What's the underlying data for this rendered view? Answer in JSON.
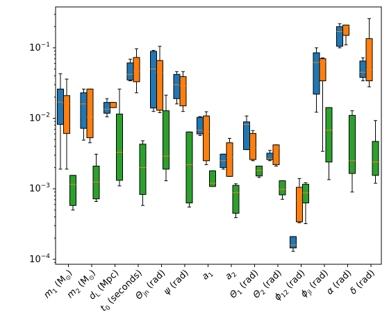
{
  "chart_data": {
    "type": "boxplot",
    "yscale": "log",
    "ylim": [
      8.5e-05,
      0.38
    ],
    "ytick_labels": [
      {
        "value": 0.0001,
        "base": "10",
        "exp": "−4"
      },
      {
        "value": 0.001,
        "base": "10",
        "exp": "−3"
      },
      {
        "value": 0.01,
        "base": "10",
        "exp": "−2"
      },
      {
        "value": 0.1,
        "base": "10",
        "exp": "−1"
      }
    ],
    "categories": [
      {
        "main": "m",
        "sub": "1",
        "after": " (M",
        "sub2": "⊙",
        "end": ")"
      },
      {
        "main": "m",
        "sub": "2",
        "after": " (M",
        "sub2": "⊙",
        "end": ")"
      },
      {
        "main": "d",
        "sub": "L",
        "after": " (Mpc)",
        "sub2": "",
        "end": ""
      },
      {
        "main": "t",
        "sub": "0",
        "after": " (seconds)",
        "sub2": "",
        "end": ""
      },
      {
        "main": "Θ",
        "sub": "jn",
        "after": " (rad)",
        "sub2": "",
        "end": ""
      },
      {
        "main": "ψ",
        "sub": "",
        "after": " (rad)",
        "sub2": "",
        "end": ""
      },
      {
        "main": "a",
        "sub": "1",
        "after": "",
        "sub2": "",
        "end": ""
      },
      {
        "main": "a",
        "sub": "2",
        "after": "",
        "sub2": "",
        "end": ""
      },
      {
        "main": "Θ",
        "sub": "1",
        "after": " (rad)",
        "sub2": "",
        "end": ""
      },
      {
        "main": "Θ",
        "sub": "2",
        "after": " (rad)",
        "sub2": "",
        "end": ""
      },
      {
        "main": "ϕ",
        "sub": "12",
        "after": " (rad)",
        "sub2": "",
        "end": ""
      },
      {
        "main": "ϕ",
        "sub": "jl",
        "after": " (rad)",
        "sub2": "",
        "end": ""
      },
      {
        "main": "α",
        "sub": "",
        "after": " (rad)",
        "sub2": "",
        "end": ""
      },
      {
        "main": "δ",
        "sub": "",
        "after": " (rad)",
        "sub2": "",
        "end": ""
      }
    ],
    "series_colors": [
      "#1f77b4",
      "#ff7f0e",
      "#2ca02c"
    ],
    "median_color": "#ff7f0e",
    "series": [
      {
        "boxes": [
          {
            "min": 0.0019,
            "q1": 0.0082,
            "median": 0.017,
            "q3": 0.026,
            "max": 0.043
          },
          {
            "min": 0.0049,
            "q1": 0.0072,
            "median": 0.016,
            "q3": 0.023,
            "max": 0.026
          },
          {
            "min": 0.0105,
            "q1": 0.0118,
            "median": 0.0135,
            "q3": 0.0168,
            "max": 0.019
          },
          {
            "min": 0.034,
            "q1": 0.035,
            "median": 0.042,
            "q3": 0.061,
            "max": 0.069
          },
          {
            "min": 0.0125,
            "q1": 0.014,
            "median": 0.05,
            "q3": 0.089,
            "max": 0.092
          },
          {
            "min": 0.016,
            "q1": 0.019,
            "median": 0.03,
            "q3": 0.042,
            "max": 0.046
          },
          {
            "min": 0.0057,
            "q1": 0.006,
            "median": 0.0068,
            "q3": 0.0103,
            "max": 0.0106
          },
          {
            "min": 0.0019,
            "q1": 0.002,
            "median": 0.0025,
            "q3": 0.0031,
            "max": 0.0031
          },
          {
            "min": 0.0036,
            "q1": 0.0036,
            "median": 0.0082,
            "q3": 0.0089,
            "max": 0.0108
          },
          {
            "min": 0.0025,
            "q1": 0.0026,
            "median": 0.0027,
            "q3": 0.0032,
            "max": 0.0035
          },
          {
            "min": 0.00013,
            "q1": 0.000145,
            "median": 0.00016,
            "q3": 0.00021,
            "max": 0.00021
          },
          {
            "min": 0.0122,
            "q1": 0.022,
            "median": 0.062,
            "q3": 0.085,
            "max": 0.1
          },
          {
            "min": 0.1,
            "q1": 0.105,
            "median": 0.17,
            "q3": 0.2,
            "max": 0.22
          },
          {
            "min": 0.034,
            "q1": 0.038,
            "median": 0.045,
            "q3": 0.065,
            "max": 0.072
          }
        ]
      },
      {
        "boxes": [
          {
            "min": 0.0019,
            "q1": 0.0061,
            "median": 0.016,
            "q3": 0.021,
            "max": 0.036
          },
          {
            "min": 0.0045,
            "q1": 0.0053,
            "median": 0.0105,
            "q3": 0.026,
            "max": 0.026
          },
          {
            "min": 0.0142,
            "q1": 0.0142,
            "median": 0.015,
            "q3": 0.0168,
            "max": 0.0168
          },
          {
            "min": 0.023,
            "q1": 0.033,
            "median": 0.046,
            "q3": 0.073,
            "max": 0.097
          },
          {
            "min": 0.012,
            "q1": 0.013,
            "median": 0.045,
            "q3": 0.066,
            "max": 0.105
          },
          {
            "min": 0.0125,
            "q1": 0.015,
            "median": 0.029,
            "q3": 0.039,
            "max": 0.046
          },
          {
            "min": 0.0022,
            "q1": 0.0025,
            "median": 0.0065,
            "q3": 0.0108,
            "max": 0.0124
          },
          {
            "min": 0.0015,
            "q1": 0.0015,
            "median": 0.0028,
            "q3": 0.0045,
            "max": 0.0052
          },
          {
            "min": 0.0025,
            "q1": 0.0026,
            "median": 0.0038,
            "q3": 0.0061,
            "max": 0.0067
          },
          {
            "min": 0.0021,
            "q1": 0.0022,
            "median": 0.0038,
            "q3": 0.0042,
            "max": 0.0042
          },
          {
            "min": 0.00033,
            "q1": 0.00034,
            "median": 0.00068,
            "q3": 0.00105,
            "max": 0.0014
          },
          {
            "min": 0.0034,
            "q1": 0.034,
            "median": 0.063,
            "q3": 0.07,
            "max": 0.072
          },
          {
            "min": 0.11,
            "q1": 0.15,
            "median": 0.2,
            "q3": 0.21,
            "max": 0.21
          },
          {
            "min": 0.028,
            "q1": 0.034,
            "median": 0.049,
            "q3": 0.135,
            "max": 0.26
          }
        ]
      },
      {
        "boxes": [
          {
            "min": 0.0005,
            "q1": 0.00058,
            "median": 0.00115,
            "q3": 0.00155,
            "max": 0.00155
          },
          {
            "min": 0.00066,
            "q1": 0.00072,
            "median": 0.00125,
            "q3": 0.0021,
            "max": 0.0031
          },
          {
            "min": 0.0011,
            "q1": 0.00132,
            "median": 0.0033,
            "q3": 0.0115,
            "max": 0.026
          },
          {
            "min": 0.00058,
            "q1": 0.00083,
            "median": 0.002,
            "q3": 0.0043,
            "max": 0.0048
          },
          {
            "min": 0.0013,
            "q1": 0.0019,
            "median": 0.0029,
            "q3": 0.0128,
            "max": 0.0213
          },
          {
            "min": 0.00055,
            "q1": 0.00063,
            "median": 0.0022,
            "q3": 0.0064,
            "max": 0.0064
          },
          {
            "min": 0.00108,
            "q1": 0.00108,
            "median": 0.0012,
            "q3": 0.0018,
            "max": 0.0018
          },
          {
            "min": 0.00039,
            "q1": 0.00045,
            "median": 0.00088,
            "q3": 0.00112,
            "max": 0.00118
          },
          {
            "min": 0.00145,
            "q1": 0.00152,
            "median": 0.00182,
            "q3": 0.0021,
            "max": 0.0021
          },
          {
            "min": 0.00071,
            "q1": 0.00082,
            "median": 0.00098,
            "q3": 0.0013,
            "max": 0.0013
          },
          {
            "min": 0.00032,
            "q1": 0.00063,
            "median": 0.00088,
            "q3": 0.00116,
            "max": 0.00122
          },
          {
            "min": 0.00135,
            "q1": 0.0024,
            "median": 0.0068,
            "q3": 0.0142,
            "max": 0.0142
          },
          {
            "min": 0.0009,
            "q1": 0.00165,
            "median": 0.0025,
            "q3": 0.011,
            "max": 0.0128
          },
          {
            "min": 0.0012,
            "q1": 0.00155,
            "median": 0.0024,
            "q3": 0.0047,
            "max": 0.0093
          }
        ]
      }
    ]
  }
}
